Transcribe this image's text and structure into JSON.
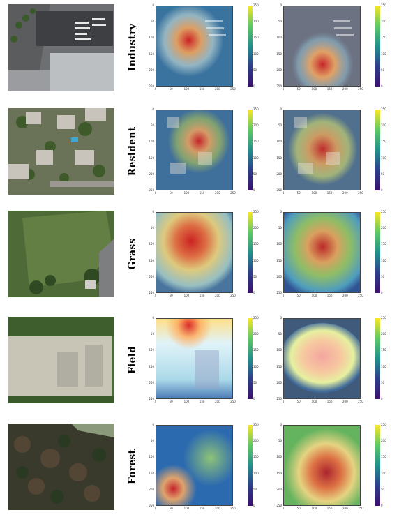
{
  "rows": [
    {
      "label": "Industry",
      "scene": "industry",
      "cam1_max": 250,
      "cam2_max": 250
    },
    {
      "label": "Resident",
      "scene": "resident",
      "cam1_max": 250,
      "cam2_max": 250
    },
    {
      "label": "Grass",
      "scene": "grass",
      "cam1_max": 250,
      "cam2_max": 250
    },
    {
      "label": "Field",
      "scene": "field",
      "cam1_max": 250,
      "cam2_max": 250
    },
    {
      "label": "Forest",
      "scene": "forest",
      "cam1_max": 250,
      "cam2_max": 250
    }
  ],
  "axis_ticks": [
    "0",
    "50",
    "100",
    "150",
    "200",
    "250"
  ],
  "colorbar_ticks": [
    "0",
    "50",
    "100",
    "150",
    "200",
    "250"
  ],
  "colormap": [
    "#3b0f70",
    "#2c3f8a",
    "#21908d",
    "#5ec962",
    "#fde725"
  ],
  "heat_colors": {
    "hot": "#d7191c",
    "warm": "#fdae61",
    "mid": "#ffffbf",
    "cool": "#abd9e9",
    "cold": "#2c7bb6"
  }
}
